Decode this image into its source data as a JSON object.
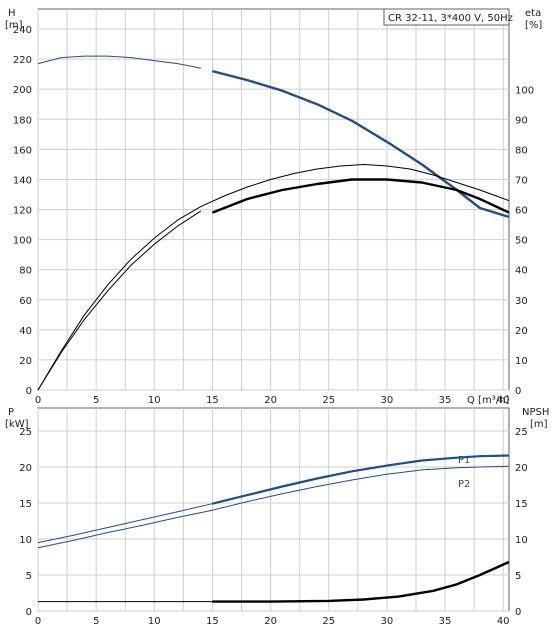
{
  "chart_data": [
    {
      "type": "line",
      "title": "CR 32-11, 3*400 V, 50Hz",
      "x_label": "Q [m³/h]",
      "x_ticks": [
        0,
        5,
        10,
        15,
        20,
        25,
        30,
        35,
        40
      ],
      "xlim": [
        0,
        40.5
      ],
      "left_axis": {
        "label_line1": "H",
        "label_line2": "[m]",
        "ticks": [
          0,
          20,
          40,
          60,
          80,
          100,
          120,
          140,
          160,
          180,
          200,
          220,
          240
        ],
        "ylim": [
          0,
          240
        ]
      },
      "right_axis": {
        "label_line1": "eta",
        "label_line2": "[%]",
        "ticks": [
          0,
          10,
          20,
          30,
          40,
          50,
          60,
          70,
          80,
          90,
          100
        ],
        "ylim": [
          0,
          120
        ]
      },
      "grid": true,
      "series": [
        {
          "axis": "left",
          "color": "#1f4e8c",
          "x": [
            0,
            2,
            4,
            6,
            8,
            10,
            12,
            14
          ],
          "y": [
            217,
            221,
            222,
            222,
            221,
            219,
            217,
            214
          ],
          "style": "thin"
        },
        {
          "axis": "left",
          "color": "#1f4e8c",
          "x": [
            15,
            18,
            21,
            24,
            27,
            30,
            33,
            36,
            38,
            40.5
          ],
          "y": [
            212,
            206,
            199,
            190,
            179,
            165,
            150,
            133,
            121,
            115
          ],
          "style": "bold"
        },
        {
          "axis": "right",
          "color": "#000000",
          "x": [
            0,
            2,
            4,
            6,
            8,
            10,
            12,
            14
          ],
          "y": [
            0,
            12.5,
            23.5,
            33,
            41.5,
            48.5,
            54.5,
            59.5
          ],
          "style": "thin"
        },
        {
          "axis": "right",
          "color": "#000000",
          "x": [
            0,
            2,
            4,
            6,
            8,
            10,
            12,
            14,
            16,
            18,
            20,
            22,
            24,
            26,
            28,
            30,
            32,
            34,
            36,
            38,
            40.5
          ],
          "y": [
            0,
            13,
            25,
            35,
            43.5,
            50.5,
            56.5,
            61,
            64.5,
            67.5,
            70,
            72,
            73.5,
            74.5,
            75,
            74.5,
            73.5,
            71.5,
            69,
            66.5,
            63
          ],
          "style": "thin"
        },
        {
          "axis": "right",
          "color": "#000000",
          "x": [
            15,
            18,
            21,
            24,
            27,
            30,
            33,
            36,
            38,
            40.5
          ],
          "y": [
            59,
            63.5,
            66.5,
            68.5,
            70,
            70,
            69,
            66.5,
            63.5,
            59
          ],
          "style": "bold"
        }
      ]
    },
    {
      "type": "line",
      "x_ticks": [
        0,
        5,
        10,
        15,
        20,
        25,
        30,
        35,
        40
      ],
      "xlim": [
        0,
        40.5
      ],
      "left_axis": {
        "label_line1": "P",
        "label_line2": "[kW]",
        "ticks": [
          0,
          5,
          10,
          15,
          20,
          25
        ],
        "ylim": [
          0,
          25
        ]
      },
      "right_axis": {
        "label_line1": "NPSH",
        "label_line2": "[m]",
        "ticks": [
          0,
          5,
          10,
          15,
          20,
          25
        ],
        "ylim": [
          0,
          25
        ]
      },
      "grid": true,
      "series": [
        {
          "name": "P1",
          "axis": "left",
          "color": "#1f4e8c",
          "x": [
            0,
            3,
            6,
            9,
            12,
            15,
            18,
            21,
            24,
            27,
            30,
            33,
            36,
            38,
            40.5
          ],
          "y": [
            9.5,
            10.5,
            11.6,
            12.7,
            13.8,
            14.9,
            16.1,
            17.3,
            18.4,
            19.4,
            20.2,
            20.9,
            21.3,
            21.5,
            21.6
          ],
          "style": "mixed",
          "bold_from": 15
        },
        {
          "name": "P2",
          "axis": "left",
          "color": "#1f4e8c",
          "x": [
            0,
            3,
            6,
            9,
            12,
            15,
            18,
            21,
            24,
            27,
            30,
            33,
            36,
            38,
            40.5
          ],
          "y": [
            8.8,
            9.8,
            10.9,
            11.9,
            13.0,
            14.0,
            15.2,
            16.3,
            17.3,
            18.2,
            19.0,
            19.6,
            19.9,
            20.0,
            20.1
          ],
          "style": "thin"
        },
        {
          "axis": "left",
          "color": "#000000",
          "x": [
            0,
            15
          ],
          "y": [
            1.3,
            1.3
          ],
          "style": "thin"
        },
        {
          "axis": "right",
          "color": "#000000",
          "x": [
            15,
            20,
            25,
            28,
            31,
            34,
            36,
            38,
            40.5
          ],
          "y": [
            1.3,
            1.3,
            1.4,
            1.6,
            2.0,
            2.8,
            3.7,
            5.0,
            6.8
          ],
          "style": "bold"
        }
      ]
    }
  ]
}
